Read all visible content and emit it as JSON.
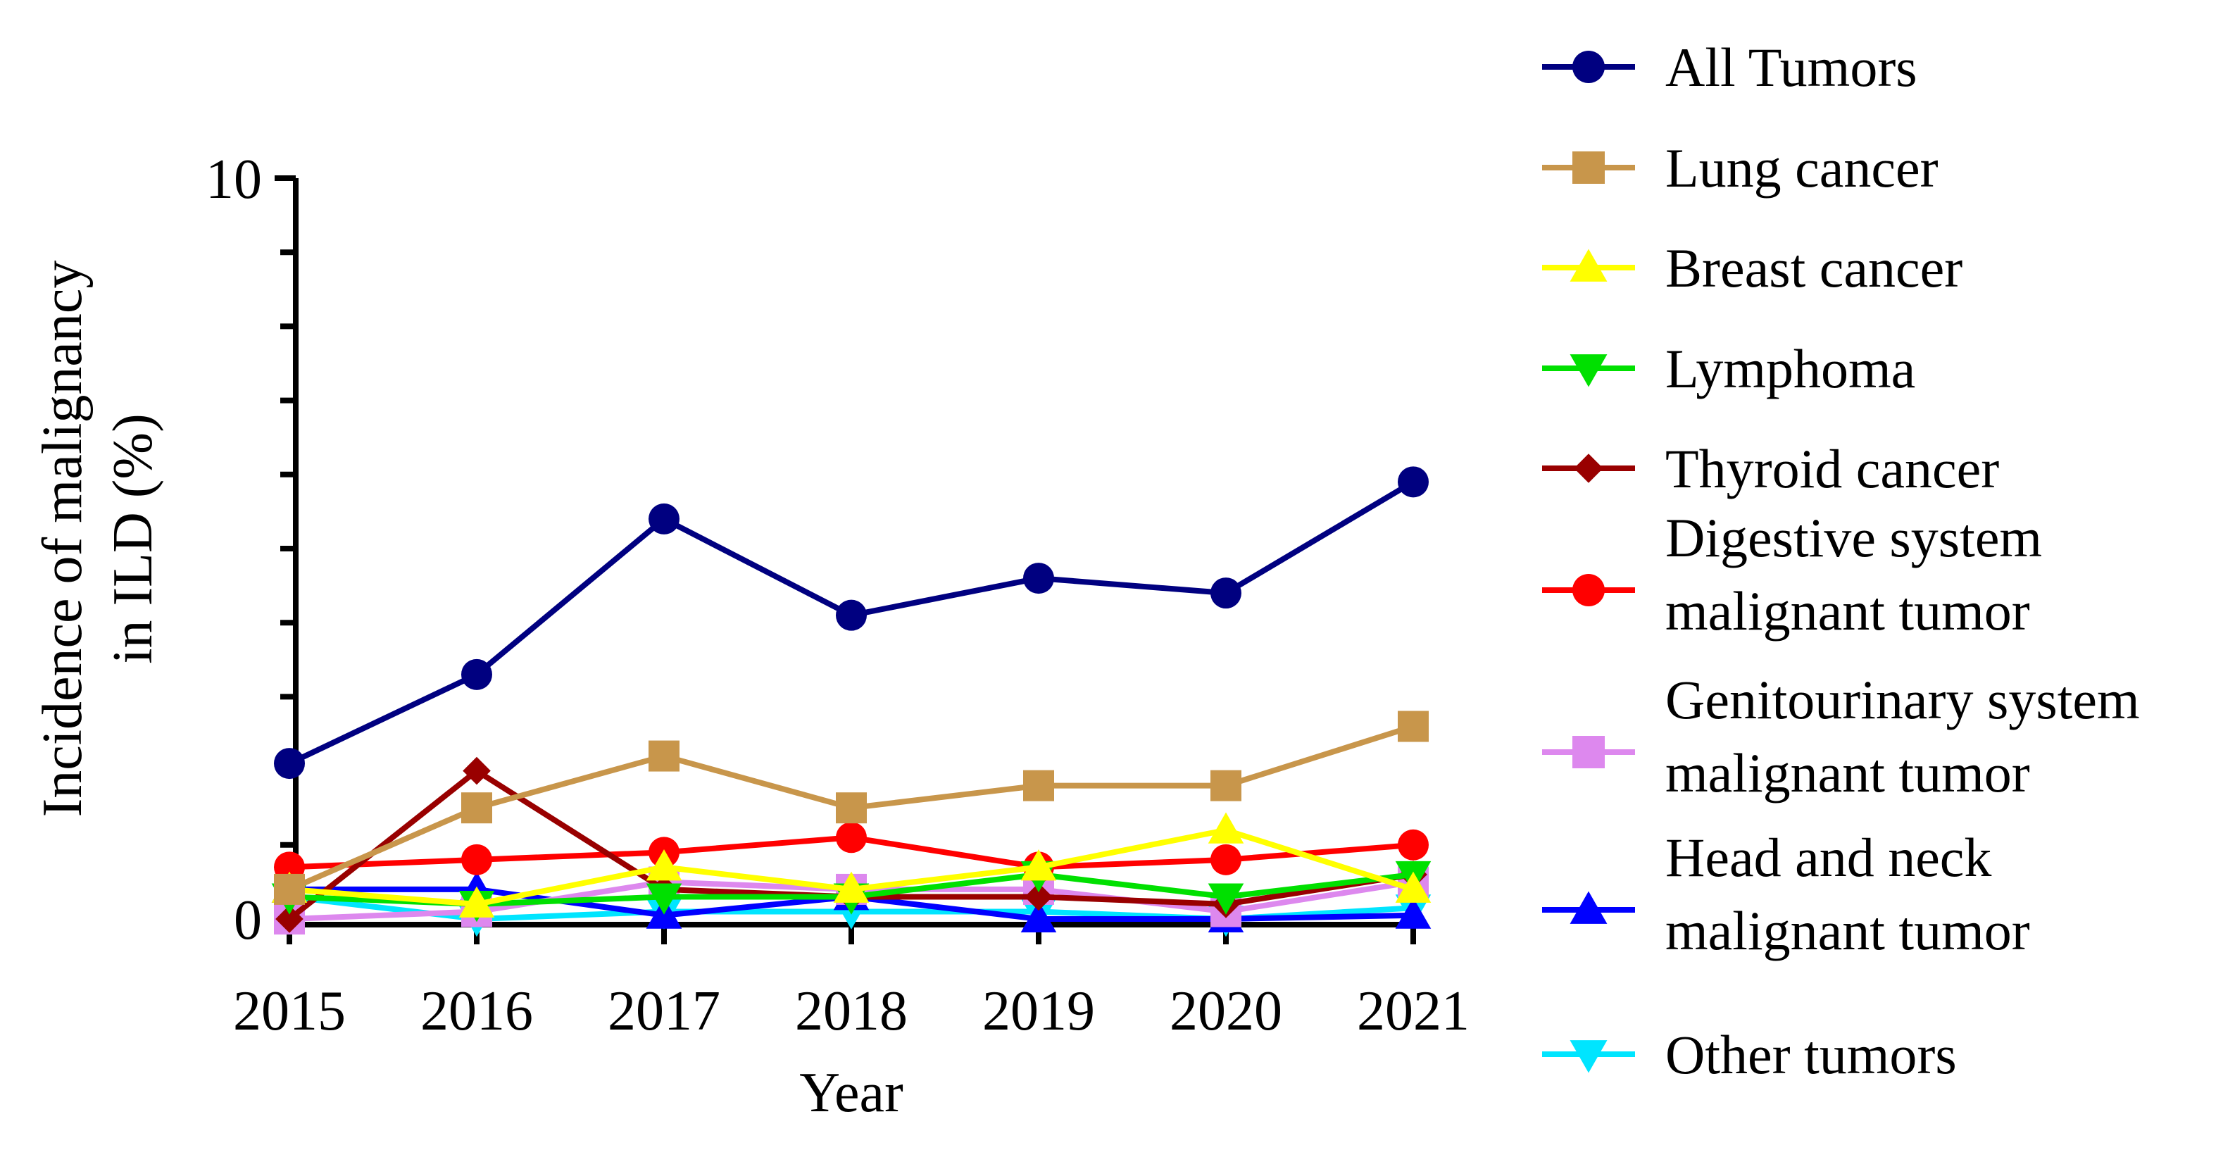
{
  "chart_data": {
    "type": "line",
    "title": "",
    "xlabel": "Year",
    "ylabel_lines": [
      "Incidence of malignancy",
      "in ILD (%)"
    ],
    "ylim": [
      0,
      10
    ],
    "yticks": [
      "0",
      "10"
    ],
    "categories": [
      "2015",
      "2016",
      "2017",
      "2018",
      "2019",
      "2020",
      "2021"
    ],
    "legend_position": "right",
    "series": [
      {
        "name": "All Tumors",
        "label_lines": [
          "All Tumors"
        ],
        "color": "#000080",
        "marker": "circle",
        "values": [
          2.1,
          3.3,
          5.4,
          4.1,
          4.6,
          4.4,
          5.9
        ]
      },
      {
        "name": "Lung cancer",
        "label_lines": [
          "Lung cancer"
        ],
        "color": "#C8964B",
        "marker": "square",
        "values": [
          0.4,
          1.5,
          2.2,
          1.5,
          1.8,
          1.8,
          2.6
        ]
      },
      {
        "name": "Breast cancer",
        "label_lines": [
          "Breast cancer"
        ],
        "color": "#FFFF00",
        "marker": "triangle-up",
        "values": [
          0.4,
          0.2,
          0.7,
          0.4,
          0.7,
          1.2,
          0.4
        ]
      },
      {
        "name": "Lymphoma",
        "label_lines": [
          "Lymphoma"
        ],
        "color": "#00E000",
        "marker": "triangle-down",
        "values": [
          0.3,
          0.2,
          0.3,
          0.3,
          0.6,
          0.3,
          0.6
        ]
      },
      {
        "name": "Thyroid cancer",
        "label_lines": [
          "Thyroid cancer"
        ],
        "color": "#990000",
        "marker": "diamond",
        "values": [
          0.0,
          2.0,
          0.4,
          0.3,
          0.3,
          0.2,
          0.6
        ]
      },
      {
        "name": "Digestive system malignant tumor",
        "label_lines": [
          "Digestive system",
          "malignant tumor"
        ],
        "color": "#FF0000",
        "marker": "circle",
        "values": [
          0.7,
          0.8,
          0.9,
          1.1,
          0.7,
          0.8,
          1.0
        ]
      },
      {
        "name": "Genitourinary system malignant tumor",
        "label_lines": [
          "Genitourinary system",
          "malignant tumor"
        ],
        "color": "#DD88EE",
        "marker": "square",
        "values": [
          0.0,
          0.1,
          0.5,
          0.4,
          0.4,
          0.1,
          0.5
        ]
      },
      {
        "name": "Head and neck malignant tumor",
        "label_lines": [
          "Head and neck",
          "malignant tumor"
        ],
        "color": "#0000FF",
        "marker": "triangle-up",
        "values": [
          0.4,
          0.4,
          0.05,
          0.3,
          0.0,
          0.0,
          0.05
        ]
      },
      {
        "name": "Other tumors",
        "label_lines": [
          "Other tumors"
        ],
        "color": "#00E5FF",
        "marker": "triangle-down",
        "values": [
          0.3,
          0.0,
          0.1,
          0.1,
          0.1,
          0.0,
          0.15
        ]
      }
    ]
  }
}
